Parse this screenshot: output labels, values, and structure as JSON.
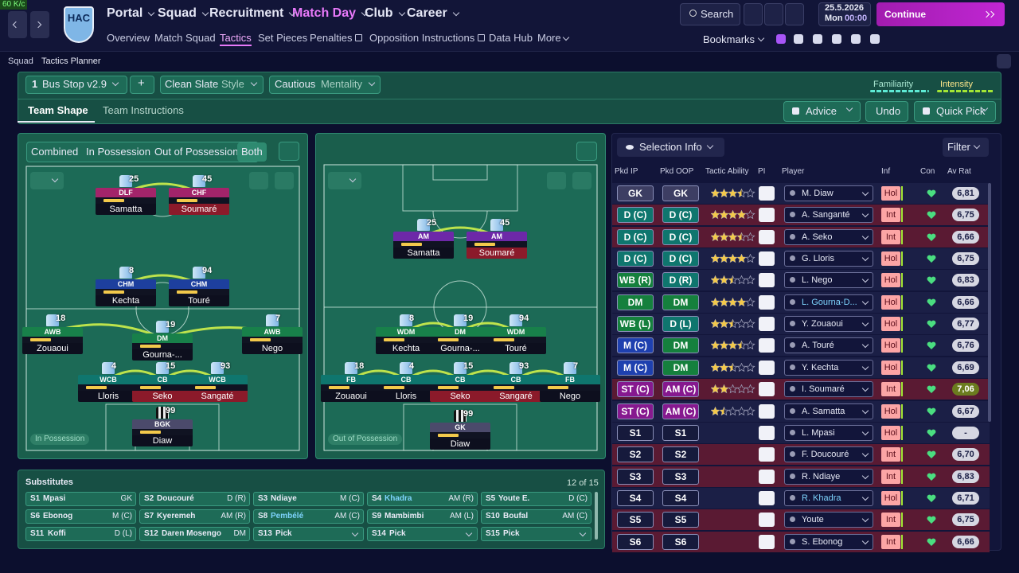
{
  "topbar": {
    "fps": "60 K/c",
    "club": "HAC",
    "nav": [
      "Portal",
      "Squad",
      "Recruitment",
      "Match Day",
      "Club",
      "Career"
    ],
    "subnav": [
      "Overview",
      "Match Squad",
      "Tactics",
      "Set Pieces",
      "Penalties",
      "Opposition Instructions",
      "Data Hub",
      "More"
    ],
    "search": "Search",
    "date": "25.5.2026",
    "day": "Mon",
    "time": "00:00",
    "continue": "Continue",
    "bookmarks": "Bookmarks"
  },
  "breadcrumb": [
    "Squad",
    "Tactics Planner"
  ],
  "tactic": {
    "slot": "1",
    "name": "Bus Stop v2.9",
    "add": "+",
    "style": "Clean Slate",
    "style_label": "Style",
    "mentality": "Cautious",
    "mentality_label": "Mentality",
    "familiarity": "Familiarity",
    "intensity": "Intensity"
  },
  "tabs": [
    "Team Shape",
    "Team Instructions"
  ],
  "actions": [
    "Advice",
    "Undo",
    "Quick Pick"
  ],
  "views": [
    "Combined",
    "In Possession",
    "Out of Possession",
    "Both"
  ],
  "in_possession": {
    "label": "In Possession",
    "players": [
      {
        "number": "25",
        "role": "DLF",
        "name": "Samatta"
      },
      {
        "number": "45",
        "role": "CHF",
        "name": "Soumaré"
      },
      {
        "number": "8",
        "role": "CHM",
        "name": "Kechta"
      },
      {
        "number": "94",
        "role": "CHM",
        "name": "Touré"
      },
      {
        "number": "18",
        "role": "AWB",
        "name": "Zouaoui"
      },
      {
        "number": "19",
        "role": "DM",
        "name": "Gourna-..."
      },
      {
        "number": "7",
        "role": "AWB",
        "name": "Nego"
      },
      {
        "number": "4",
        "role": "WCB",
        "name": "Lloris"
      },
      {
        "number": "15",
        "role": "CB",
        "name": "Seko"
      },
      {
        "number": "93",
        "role": "WCB",
        "name": "Sangaté"
      },
      {
        "number": "99",
        "role": "BGK",
        "name": "Diaw"
      }
    ]
  },
  "out_of_possession": {
    "label": "Out of Possession",
    "players": [
      {
        "number": "25",
        "role": "AM",
        "name": "Samatta"
      },
      {
        "number": "45",
        "role": "AM",
        "name": "Soumaré"
      },
      {
        "number": "8",
        "role": "WDM",
        "name": "Kechta"
      },
      {
        "number": "19",
        "role": "DM",
        "name": "Gourna-..."
      },
      {
        "number": "94",
        "role": "WDM",
        "name": "Touré"
      },
      {
        "number": "18",
        "role": "FB",
        "name": "Zouaoui"
      },
      {
        "number": "4",
        "role": "CB",
        "name": "Lloris"
      },
      {
        "number": "15",
        "role": "CB",
        "name": "Seko"
      },
      {
        "number": "93",
        "role": "CB",
        "name": "Sangaré"
      },
      {
        "number": "7",
        "role": "FB",
        "name": "Nego"
      },
      {
        "number": "99",
        "role": "GK",
        "name": "Diaw"
      }
    ]
  },
  "selection": {
    "title": "Selection Info",
    "filter": "Filter",
    "columns": [
      "Pkd IP",
      "Pkd OOP",
      "Tactic Ability",
      "PI",
      "Player",
      "Inf",
      "Con",
      "Av Rat"
    ],
    "rows": [
      {
        "ip": "GK",
        "oop": "GK",
        "ability": 3.5,
        "player": "M. Diaw",
        "inf": "Hol",
        "rat": "6,81"
      },
      {
        "ip": "D (C)",
        "oop": "D (C)",
        "ability": 4,
        "player": "A. Sanganté",
        "inf": "Int",
        "rat": "6,75"
      },
      {
        "ip": "D (C)",
        "oop": "D (C)",
        "ability": 3.5,
        "player": "A. Seko",
        "inf": "Int",
        "rat": "6,66"
      },
      {
        "ip": "D (C)",
        "oop": "D (C)",
        "ability": 4,
        "player": "G. Lloris",
        "inf": "Hol",
        "rat": "6,75"
      },
      {
        "ip": "WB (R)",
        "oop": "D (R)",
        "ability": 2.5,
        "player": "L. Nego",
        "inf": "Hol",
        "rat": "6,83"
      },
      {
        "ip": "DM",
        "oop": "DM",
        "ability": 4,
        "player": "L. Gourna-D...",
        "inf": "Hol",
        "rat": "6,66"
      },
      {
        "ip": "WB (L)",
        "oop": "D (L)",
        "ability": 2.5,
        "player": "Y. Zouaoui",
        "inf": "Hol",
        "rat": "6,77"
      },
      {
        "ip": "M (C)",
        "oop": "DM",
        "ability": 3.5,
        "player": "A. Touré",
        "inf": "Hol",
        "rat": "6,76"
      },
      {
        "ip": "M (C)",
        "oop": "DM",
        "ability": 2.5,
        "player": "Y. Kechta",
        "inf": "Hol",
        "rat": "6,69"
      },
      {
        "ip": "ST (C)",
        "oop": "AM (C)",
        "ability": 2,
        "player": "I. Soumaré",
        "inf": "Int",
        "rat": "7,06"
      },
      {
        "ip": "ST (C)",
        "oop": "AM (C)",
        "ability": 1.5,
        "player": "A. Samatta",
        "inf": "Hol",
        "rat": "6,67"
      },
      {
        "ip": "S1",
        "oop": "S1",
        "ability": null,
        "player": "L. Mpasi",
        "inf": "Hol",
        "rat": "-"
      },
      {
        "ip": "S2",
        "oop": "S2",
        "ability": null,
        "player": "F. Doucouré",
        "inf": "Int",
        "rat": "6,70"
      },
      {
        "ip": "S3",
        "oop": "S3",
        "ability": null,
        "player": "R. Ndiaye",
        "inf": "Int",
        "rat": "6,83"
      },
      {
        "ip": "S4",
        "oop": "S4",
        "ability": null,
        "player": "R. Khadra",
        "inf": "Hol",
        "rat": "6,71"
      },
      {
        "ip": "S5",
        "oop": "S5",
        "ability": null,
        "player": "Youte",
        "inf": "Int",
        "rat": "6,75"
      },
      {
        "ip": "S6",
        "oop": "S6",
        "ability": null,
        "player": "S. Ebonog",
        "inf": "Int",
        "rat": "6,66"
      }
    ]
  },
  "substitutes": {
    "title": "Substitutes",
    "count": "12 of 15",
    "slots": [
      {
        "slot": "S1",
        "name": "Mpasi",
        "pos": "GK"
      },
      {
        "slot": "S2",
        "name": "Doucouré",
        "pos": "D (R)"
      },
      {
        "slot": "S3",
        "name": "Ndiaye",
        "pos": "M (C)"
      },
      {
        "slot": "S4",
        "name": "Khadra",
        "pos": "AM (R)"
      },
      {
        "slot": "S5",
        "name": "Youte E.",
        "pos": "D (C)"
      },
      {
        "slot": "S6",
        "name": "Ebonog",
        "pos": "M (C)"
      },
      {
        "slot": "S7",
        "name": "Kyeremeh",
        "pos": "AM (R)"
      },
      {
        "slot": "S8",
        "name": "Pembélé",
        "pos": "AM (C)"
      },
      {
        "slot": "S9",
        "name": "Mambimbi",
        "pos": "AM (L)"
      },
      {
        "slot": "S10",
        "name": "Boufal",
        "pos": "AM (C)"
      },
      {
        "slot": "S11",
        "name": "Koffi",
        "pos": "D (L)"
      },
      {
        "slot": "S12",
        "name": "Daren Mosengo",
        "pos": "DM"
      },
      {
        "slot": "S13",
        "name": "Pick"
      },
      {
        "slot": "S14",
        "name": "Pick"
      },
      {
        "slot": "S15",
        "name": "Pick"
      }
    ]
  }
}
